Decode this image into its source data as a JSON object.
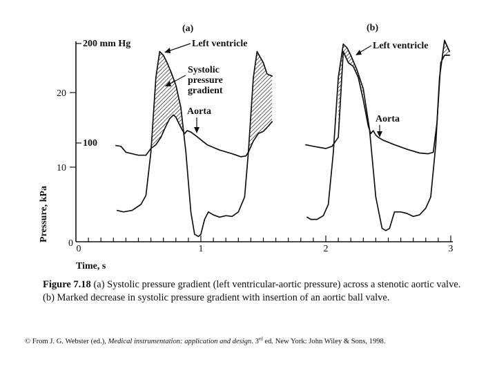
{
  "chart_data": {
    "type": "line",
    "panel_labels": [
      "(a)",
      "(b)"
    ],
    "xlabel": "Time, s",
    "ylabel": "Pressure, kPa",
    "xlim": [
      0,
      3
    ],
    "ylim": [
      0,
      25
    ],
    "x_ticks": [
      "0",
      "1",
      "2",
      "3"
    ],
    "y_ticks": [
      "0",
      "10",
      "20"
    ],
    "y_secondary_ticks": [
      "200 mm Hg",
      "100"
    ],
    "annotations": {
      "left_ventricle": "Left ventricle",
      "systolic_gradient": [
        "Systolic",
        "pressure",
        "gradient"
      ],
      "aorta": "Aorta"
    },
    "panels": [
      {
        "label": "(a)",
        "series": [
          {
            "name": "Left ventricle",
            "x": [
              0.33,
              0.38,
              0.45,
              0.52,
              0.56,
              0.6,
              0.64,
              0.67,
              0.7,
              0.73,
              0.76,
              0.8,
              0.84,
              0.88,
              0.92,
              0.95,
              0.98,
              1.0,
              1.03,
              1.06,
              1.1,
              1.15,
              1.2,
              1.25,
              1.3,
              1.35,
              1.38,
              1.42,
              1.45,
              1.5,
              1.53,
              1.57
            ],
            "y": [
              4.2,
              4.0,
              4.2,
              5.0,
              6.2,
              12.0,
              22.0,
              25.5,
              25.0,
              24.0,
              22.8,
              21.0,
              18.0,
              12.0,
              4.0,
              1.0,
              0.7,
              1.0,
              3.0,
              4.0,
              3.6,
              3.3,
              3.5,
              3.4,
              4.0,
              6.0,
              12.0,
              22.0,
              25.5,
              24.0,
              22.5,
              22.2
            ]
          },
          {
            "name": "Aorta",
            "x": [
              0.32,
              0.36,
              0.4,
              0.5,
              0.56,
              0.6,
              0.64,
              0.68,
              0.72,
              0.75,
              0.78,
              0.8,
              0.82,
              0.85,
              0.87,
              0.89,
              0.92,
              0.96,
              1.05,
              1.15,
              1.25,
              1.32,
              1.36,
              1.38,
              1.42,
              1.46,
              1.5,
              1.54,
              1.57
            ],
            "y": [
              12.9,
              12.8,
              12.0,
              11.6,
              11.6,
              12.5,
              13.0,
              14.0,
              15.5,
              16.5,
              17.0,
              16.7,
              16.0,
              15.0,
              14.5,
              14.9,
              14.7,
              14.2,
              13.0,
              12.3,
              11.8,
              11.4,
              11.5,
              12.0,
              13.5,
              14.5,
              14.8,
              15.5,
              16.1
            ]
          }
        ]
      },
      {
        "label": "(b)",
        "series": [
          {
            "name": "Left ventricle",
            "x": [
              1.85,
              1.88,
              1.93,
              1.98,
              2.02,
              2.06,
              2.1,
              2.14,
              2.17,
              2.2,
              2.25,
              2.3,
              2.35,
              2.4,
              2.45,
              2.48,
              2.51,
              2.55,
              2.6,
              2.65,
              2.7,
              2.75,
              2.8,
              2.84,
              2.88,
              2.91,
              2.95,
              2.99
            ],
            "y": [
              3.3,
              3.0,
              3.0,
              3.5,
              5.0,
              12.0,
              22.0,
              26.5,
              26.0,
              25.0,
              23.0,
              20.5,
              15.0,
              6.0,
              1.8,
              1.5,
              1.8,
              4.0,
              4.0,
              3.8,
              3.4,
              3.6,
              4.5,
              6.0,
              13.0,
              22.0,
              27.0,
              25.5
            ]
          },
          {
            "name": "Aorta",
            "x": [
              1.84,
              1.9,
              2.0,
              2.05,
              2.1,
              2.14,
              2.18,
              2.22,
              2.26,
              2.3,
              2.34,
              2.36,
              2.38,
              2.4,
              2.42,
              2.46,
              2.55,
              2.65,
              2.75,
              2.82,
              2.86,
              2.89,
              2.92,
              2.95,
              2.99
            ],
            "y": [
              13.0,
              12.8,
              12.5,
              12.8,
              14.0,
              25.5,
              24.0,
              23.5,
              22.0,
              19.0,
              15.5,
              14.5,
              14.9,
              14.3,
              14.0,
              13.6,
              13.0,
              12.4,
              11.9,
              11.8,
              12.0,
              16.0,
              24.0,
              25.0,
              25.0
            ]
          }
        ]
      }
    ],
    "gradient_region": "hatched area between left ventricle and aorta during systole"
  },
  "caption": {
    "figure_number": "Figure 7.18",
    "text": "(a) Systolic pressure gradient (left ventricular-aortic pressure) across a stenotic aortic valve. (b) Marked decrease in systolic pressure gradient with insertion of an aortic ball valve."
  },
  "credit": {
    "prefix": "© From J. G. Webster (ed.),",
    "title": "Medical instrumentation: application and design",
    "edition_num": ". 3",
    "edition_sup": "rd",
    "suffix": " ed. New York: John Wiley & Sons, 1998."
  }
}
